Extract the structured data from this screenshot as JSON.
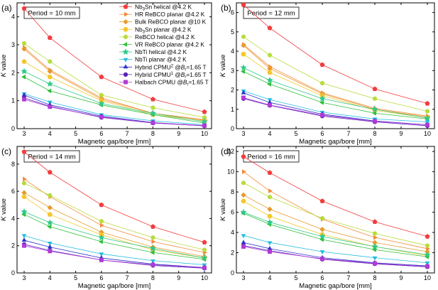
{
  "chart_data": [
    {
      "type": "line",
      "panel_label": "(a)",
      "period_label": "Period = 10 mm",
      "xlabel": "Magnetic gap/bore  [mm]",
      "ylabel": "K value",
      "x": [
        3,
        4,
        6,
        8,
        10
      ],
      "xticks": [
        "3",
        "4",
        "5",
        "6",
        "7",
        "8",
        "9",
        "10"
      ],
      "ylim": [
        0,
        4.5
      ],
      "yticks": [
        0,
        1,
        2,
        3,
        4
      ],
      "series": [
        {
          "name": "Nb3Sn helical @4.2 K",
          "values": [
            4.3,
            3.25,
            1.85,
            1.05,
            0.6
          ]
        },
        {
          "name": "HR ReBCO planar @4.2 K",
          "values": [
            2.9,
            2.1,
            1.1,
            0.55,
            0.3
          ]
        },
        {
          "name": "Bulk ReBCO planar @10 K",
          "values": [
            2.85,
            2.05,
            1.05,
            0.55,
            0.32
          ]
        },
        {
          "name": "Nb3Sn planar @4.2 K",
          "values": [
            2.4,
            1.85,
            1.0,
            0.5,
            0.27
          ]
        },
        {
          "name": "ReBCO helical @4.2 K",
          "values": [
            3.05,
            2.4,
            1.2,
            0.75,
            0.4
          ]
        },
        {
          "name": "VR ReBCO planar @4.2 K",
          "values": [
            1.85,
            1.35,
            0.85,
            0.5,
            0.2
          ]
        },
        {
          "name": "NbTi helical @4.2 K",
          "values": [
            2.05,
            1.6,
            0.9,
            0.55,
            0.25
          ]
        },
        {
          "name": "NbTi planar @4.2 K",
          "values": [
            1.25,
            0.95,
            0.5,
            0.28,
            0.14
          ]
        },
        {
          "name": "Hybrid CPMU@B=1.65 T",
          "values": [
            1.2,
            0.85,
            0.45,
            0.22,
            0.1
          ]
        },
        {
          "name": "Hybrid CPMU@B=1.65 T",
          "values": [
            1.1,
            0.8,
            0.4,
            0.2,
            0.1
          ]
        },
        {
          "name": "Halbach CPMU @B=1.65 T",
          "values": [
            1.05,
            0.78,
            0.42,
            0.21,
            0.11
          ]
        }
      ],
      "legend": [
        {
          "pre": "Nb",
          "sub": "3",
          "post": "Sn helical @4.2 K"
        },
        {
          "pre": "HR ReBCO planar @4.2 K"
        },
        {
          "pre": "Bulk ReBCO planar @10 K"
        },
        {
          "pre": "Nb",
          "sub": "3",
          "post": "Sn planar @4.2 K"
        },
        {
          "pre": "ReBCO helical @4.2 K"
        },
        {
          "pre": "VR ReBCO planar @4.2 K"
        },
        {
          "pre": "NbTi helical @4.2 K"
        },
        {
          "pre": "NbTi planar @4.2 K"
        },
        {
          "pre": "Hybrid CPMU",
          "sup": "2",
          "mid": " @",
          "ital": "B",
          "sub2": "r",
          "post": "=1.65 T"
        },
        {
          "pre": "Hybrid CPMU",
          "sup": "1",
          "mid": " @",
          "ital": "B",
          "sub2": "r",
          "post": "=1.65 T"
        },
        {
          "pre": "Halbach CPMU @",
          "ital": "B",
          "sub2": "r",
          "post": "=1.65 T"
        }
      ]
    },
    {
      "type": "line",
      "panel_label": "(b)",
      "period_label": "Period = 12 mm",
      "xlabel": "Magnetic gap/bore  [mm]",
      "ylabel": "K value",
      "x": [
        3,
        4,
        6,
        8,
        10
      ],
      "xticks": [
        "3",
        "4",
        "5",
        "6",
        "7",
        "8",
        "9",
        "10"
      ],
      "ylim": [
        0,
        6.5
      ],
      "yticks": [
        0,
        1,
        2,
        3,
        4,
        5,
        6
      ],
      "series": [
        {
          "name": "Nb3Sn helical @4.2 K",
          "values": [
            6.4,
            5.2,
            3.3,
            2.05,
            1.3
          ]
        },
        {
          "name": "HR ReBCO planar @4.2 K",
          "values": [
            4.35,
            3.2,
            1.85,
            1.05,
            0.65
          ]
        },
        {
          "name": "Bulk ReBCO planar @10 K",
          "values": [
            4.3,
            3.1,
            1.8,
            1.0,
            0.6
          ]
        },
        {
          "name": "Nb3Sn planar @4.2 K",
          "values": [
            3.85,
            2.9,
            1.7,
            0.95,
            0.55
          ]
        },
        {
          "name": "ReBCO helical @4.2 K",
          "values": [
            4.75,
            3.8,
            2.35,
            1.55,
            0.9
          ]
        },
        {
          "name": "VR ReBCO planar @4.2 K",
          "values": [
            2.95,
            2.3,
            1.35,
            0.8,
            0.5
          ]
        },
        {
          "name": "NbTi helical @4.2 K",
          "values": [
            3.15,
            2.5,
            1.55,
            1.0,
            0.55
          ]
        },
        {
          "name": "NbTi planar @4.2 K",
          "values": [
            1.95,
            1.5,
            0.85,
            0.5,
            0.35
          ]
        },
        {
          "name": "Hybrid CPMU@B=1.65 T",
          "values": [
            1.85,
            1.35,
            0.75,
            0.4,
            0.2
          ]
        },
        {
          "name": "Hybrid CPMU@B=1.65 T",
          "values": [
            1.55,
            1.2,
            0.65,
            0.35,
            0.15
          ]
        },
        {
          "name": "Halbach CPMU @B=1.65 T",
          "values": [
            1.6,
            1.22,
            0.7,
            0.38,
            0.2
          ]
        }
      ]
    },
    {
      "type": "line",
      "panel_label": "(c)",
      "period_label": "Period = 14 mm",
      "xlabel": "Magnetic gap/bore  [mm]",
      "ylabel": "K value",
      "x": [
        3,
        4,
        6,
        8,
        10
      ],
      "xticks": [
        "3",
        "4",
        "5",
        "6",
        "7",
        "8",
        "9",
        "10"
      ],
      "ylim": [
        0,
        9.3
      ],
      "yticks": [
        0,
        2,
        4,
        6,
        8
      ],
      "series": [
        {
          "name": "Nb3Sn helical @4.2 K",
          "values": [
            8.9,
            7.4,
            5.0,
            3.4,
            2.25
          ]
        },
        {
          "name": "HR ReBCO planar @4.2 K",
          "values": [
            6.9,
            5.6,
            3.5,
            2.3,
            1.5
          ]
        },
        {
          "name": "Bulk ReBCO planar @10 K",
          "values": [
            5.9,
            4.8,
            3.0,
            1.9,
            1.2
          ]
        },
        {
          "name": "Nb3Sn planar @4.2 K",
          "values": [
            5.6,
            4.3,
            2.8,
            1.7,
            1.1
          ]
        },
        {
          "name": "ReBCO helical @4.2 K",
          "values": [
            6.6,
            5.7,
            3.8,
            2.6,
            1.7
          ]
        },
        {
          "name": "VR ReBCO planar @4.2 K",
          "values": [
            4.3,
            3.4,
            2.3,
            1.5,
            1.0
          ]
        },
        {
          "name": "NbTi helical @4.2 K",
          "values": [
            4.5,
            3.7,
            2.6,
            1.8,
            1.1
          ]
        },
        {
          "name": "NbTi planar @4.2 K",
          "values": [
            2.75,
            2.2,
            1.4,
            0.9,
            0.6
          ]
        },
        {
          "name": "Hybrid CPMU@B=1.65 T",
          "values": [
            2.4,
            1.9,
            1.1,
            0.65,
            0.4
          ]
        },
        {
          "name": "Hybrid CPMU@B=1.65 T",
          "values": [
            2.1,
            1.65,
            0.95,
            0.55,
            0.35
          ]
        },
        {
          "name": "Halbach CPMU @B=1.65 T",
          "values": [
            2.0,
            1.6,
            0.95,
            0.6,
            0.38
          ]
        }
      ]
    },
    {
      "type": "line",
      "panel_label": "(d)",
      "period_label": "Period = 16 mm",
      "xlabel": "Magnetic gap/bore  [mm]",
      "ylabel": "K value",
      "x": [
        3,
        4,
        6,
        8,
        10
      ],
      "xticks": [
        "3",
        "4",
        "5",
        "6",
        "7",
        "8",
        "9",
        "10"
      ],
      "ylim": [
        0,
        12.5
      ],
      "yticks": [
        0,
        2,
        4,
        6,
        8,
        10,
        12
      ],
      "series": [
        {
          "name": "Nb3Sn helical @4.2 K",
          "values": [
            11.5,
            9.9,
            7.1,
            5.05,
            3.6
          ]
        },
        {
          "name": "HR ReBCO planar @4.2 K",
          "values": [
            10.0,
            8.1,
            5.3,
            3.5,
            2.4
          ]
        },
        {
          "name": "Bulk ReBCO planar @10 K",
          "values": [
            7.7,
            6.3,
            4.3,
            3.0,
            2.1
          ]
        },
        {
          "name": "Nb3Sn planar @4.2 K",
          "values": [
            7.1,
            5.6,
            3.8,
            2.6,
            1.7
          ]
        },
        {
          "name": "ReBCO helical @4.2 K",
          "values": [
            8.9,
            7.5,
            5.4,
            3.9,
            2.7
          ]
        },
        {
          "name": "VR ReBCO planar @4.2 K",
          "values": [
            5.9,
            4.8,
            3.3,
            2.3,
            1.6
          ]
        },
        {
          "name": "NbTi helical @4.2 K",
          "values": [
            6.0,
            5.0,
            3.6,
            2.6,
            1.8
          ]
        },
        {
          "name": "NbTi planar @4.2 K",
          "values": [
            3.7,
            3.0,
            2.1,
            1.5,
            1.0
          ]
        },
        {
          "name": "Hybrid CPMU@B=1.65 T",
          "values": [
            3.0,
            2.4,
            1.5,
            1.0,
            0.7
          ]
        },
        {
          "name": "Hybrid CPMU@B=1.65 T",
          "values": [
            2.7,
            2.2,
            1.35,
            0.9,
            0.6
          ]
        },
        {
          "name": "Halbach CPMU @B=1.65 T",
          "values": [
            2.6,
            2.1,
            1.4,
            0.95,
            0.65
          ]
        }
      ]
    }
  ],
  "series_style": [
    {
      "color": "#f23c3c",
      "marker": "pentagon"
    },
    {
      "color": "#f48a3a",
      "marker": "tri-right"
    },
    {
      "color": "#e89a2e",
      "marker": "diamond"
    },
    {
      "color": "#f3c72c",
      "marker": "hexagon"
    },
    {
      "color": "#b7dc3c",
      "marker": "circle"
    },
    {
      "color": "#2fbf3a",
      "marker": "tri-left"
    },
    {
      "color": "#2ec98a",
      "marker": "star"
    },
    {
      "color": "#26bde0",
      "marker": "tri-down"
    },
    {
      "color": "#2a34c8",
      "marker": "tri-up"
    },
    {
      "color": "#5a1fb8",
      "marker": "circle"
    },
    {
      "color": "#b23ad6",
      "marker": "square"
    }
  ]
}
